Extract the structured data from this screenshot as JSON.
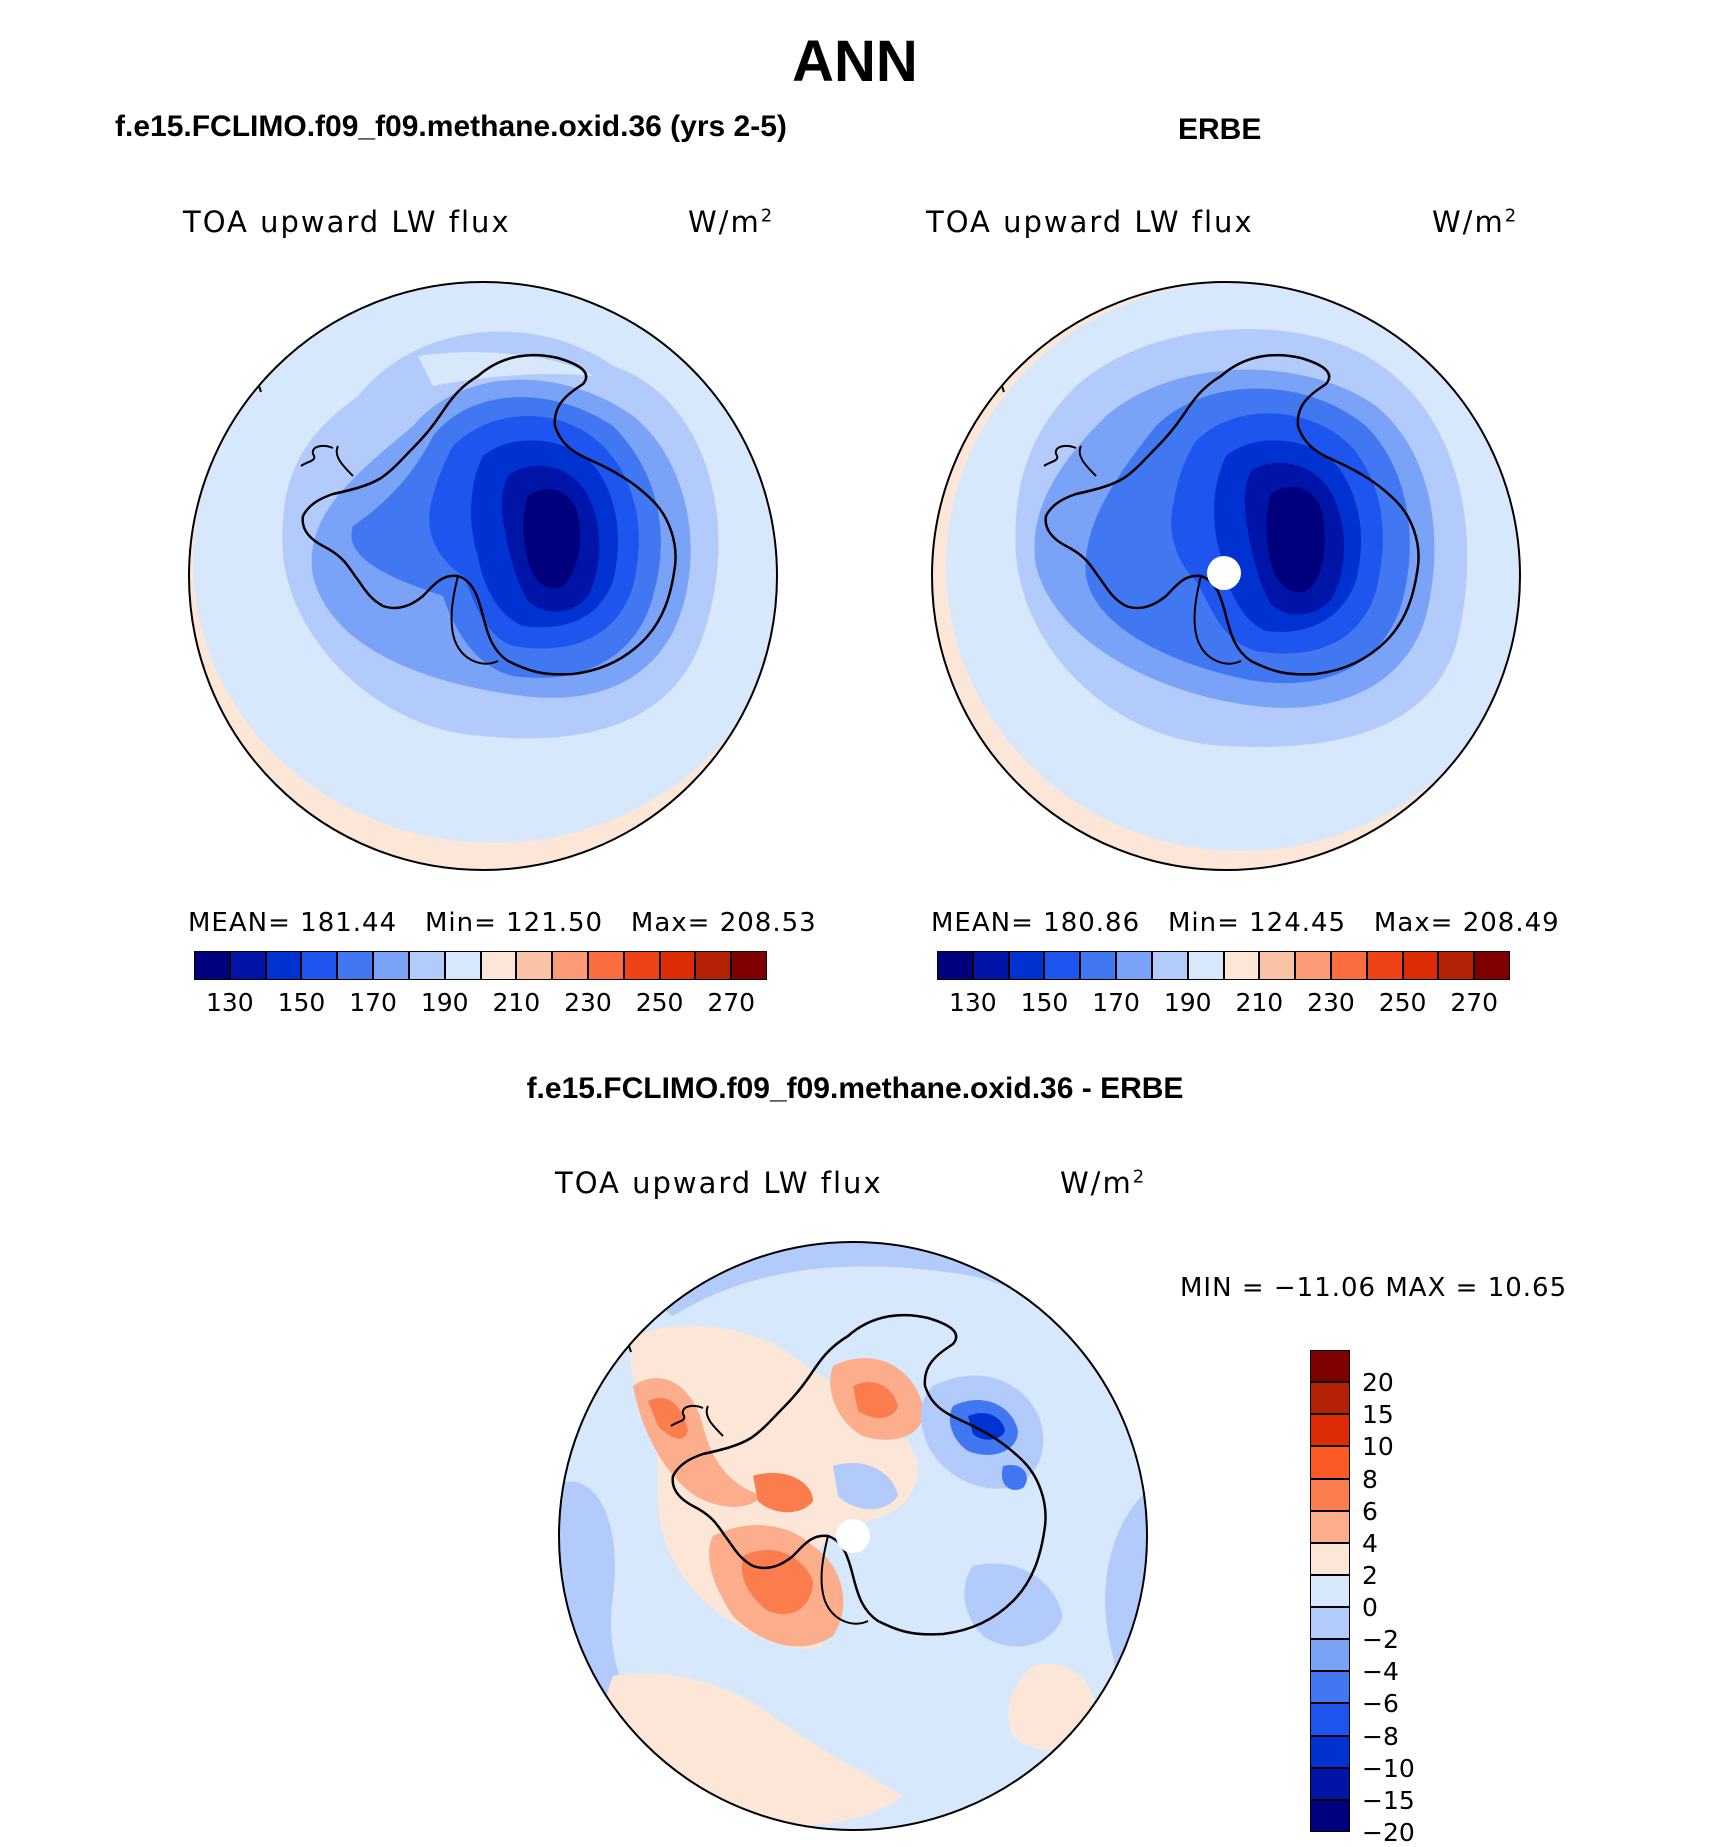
{
  "figure": {
    "season": "ANN",
    "variable_label": "TOA upward LW flux",
    "units_label": "W/m",
    "units_superscript": "2"
  },
  "panels": {
    "model": {
      "title": "f.e15.FCLIMO.f09_f09.methane.oxid.36 (yrs 2-5)",
      "mean_label": "MEAN=",
      "mean": "181.44",
      "min_label": "Min=",
      "min": "121.50",
      "max_label": "Max=",
      "max": "208.53"
    },
    "obs": {
      "title": "ERBE",
      "mean_label": "MEAN=",
      "mean": "180.86",
      "min_label": "Min=",
      "min": "124.45",
      "max_label": "Max=",
      "max": "208.49"
    },
    "diff": {
      "title": "f.e15.FCLIMO.f09_f09.methane.oxid.36 - ERBE",
      "minmax_text": "MIN = −11.06 MAX =   10.65"
    }
  },
  "colorbar_abs": {
    "colors": [
      "#00007f",
      "#0014a8",
      "#0032d2",
      "#1e55ef",
      "#4178f2",
      "#7aa2f7",
      "#b2cbfb",
      "#d7e8fc",
      "#fce6d7",
      "#fac3a5",
      "#fb9b75",
      "#fb6c3e",
      "#ef4215",
      "#dd2b06",
      "#b42104",
      "#7f0000"
    ],
    "tick_labels": [
      "130",
      "150",
      "170",
      "190",
      "210",
      "230",
      "250",
      "270"
    ]
  },
  "colorbar_diff": {
    "colors": [
      "#7f0000",
      "#b42104",
      "#dd2b06",
      "#fb5a24",
      "#fb7d4e",
      "#fcad8c",
      "#fce6d7",
      "#d7e8fc",
      "#b2cbfb",
      "#7aa2f7",
      "#4178f2",
      "#1e55ef",
      "#0032d2",
      "#0014a8",
      "#00007f"
    ],
    "tick_labels": [
      "20",
      "15",
      "10",
      "8",
      "6",
      "4",
      "2",
      "0",
      "−2",
      "−4",
      "−6",
      "−8",
      "−10",
      "−15",
      "−20"
    ]
  }
}
